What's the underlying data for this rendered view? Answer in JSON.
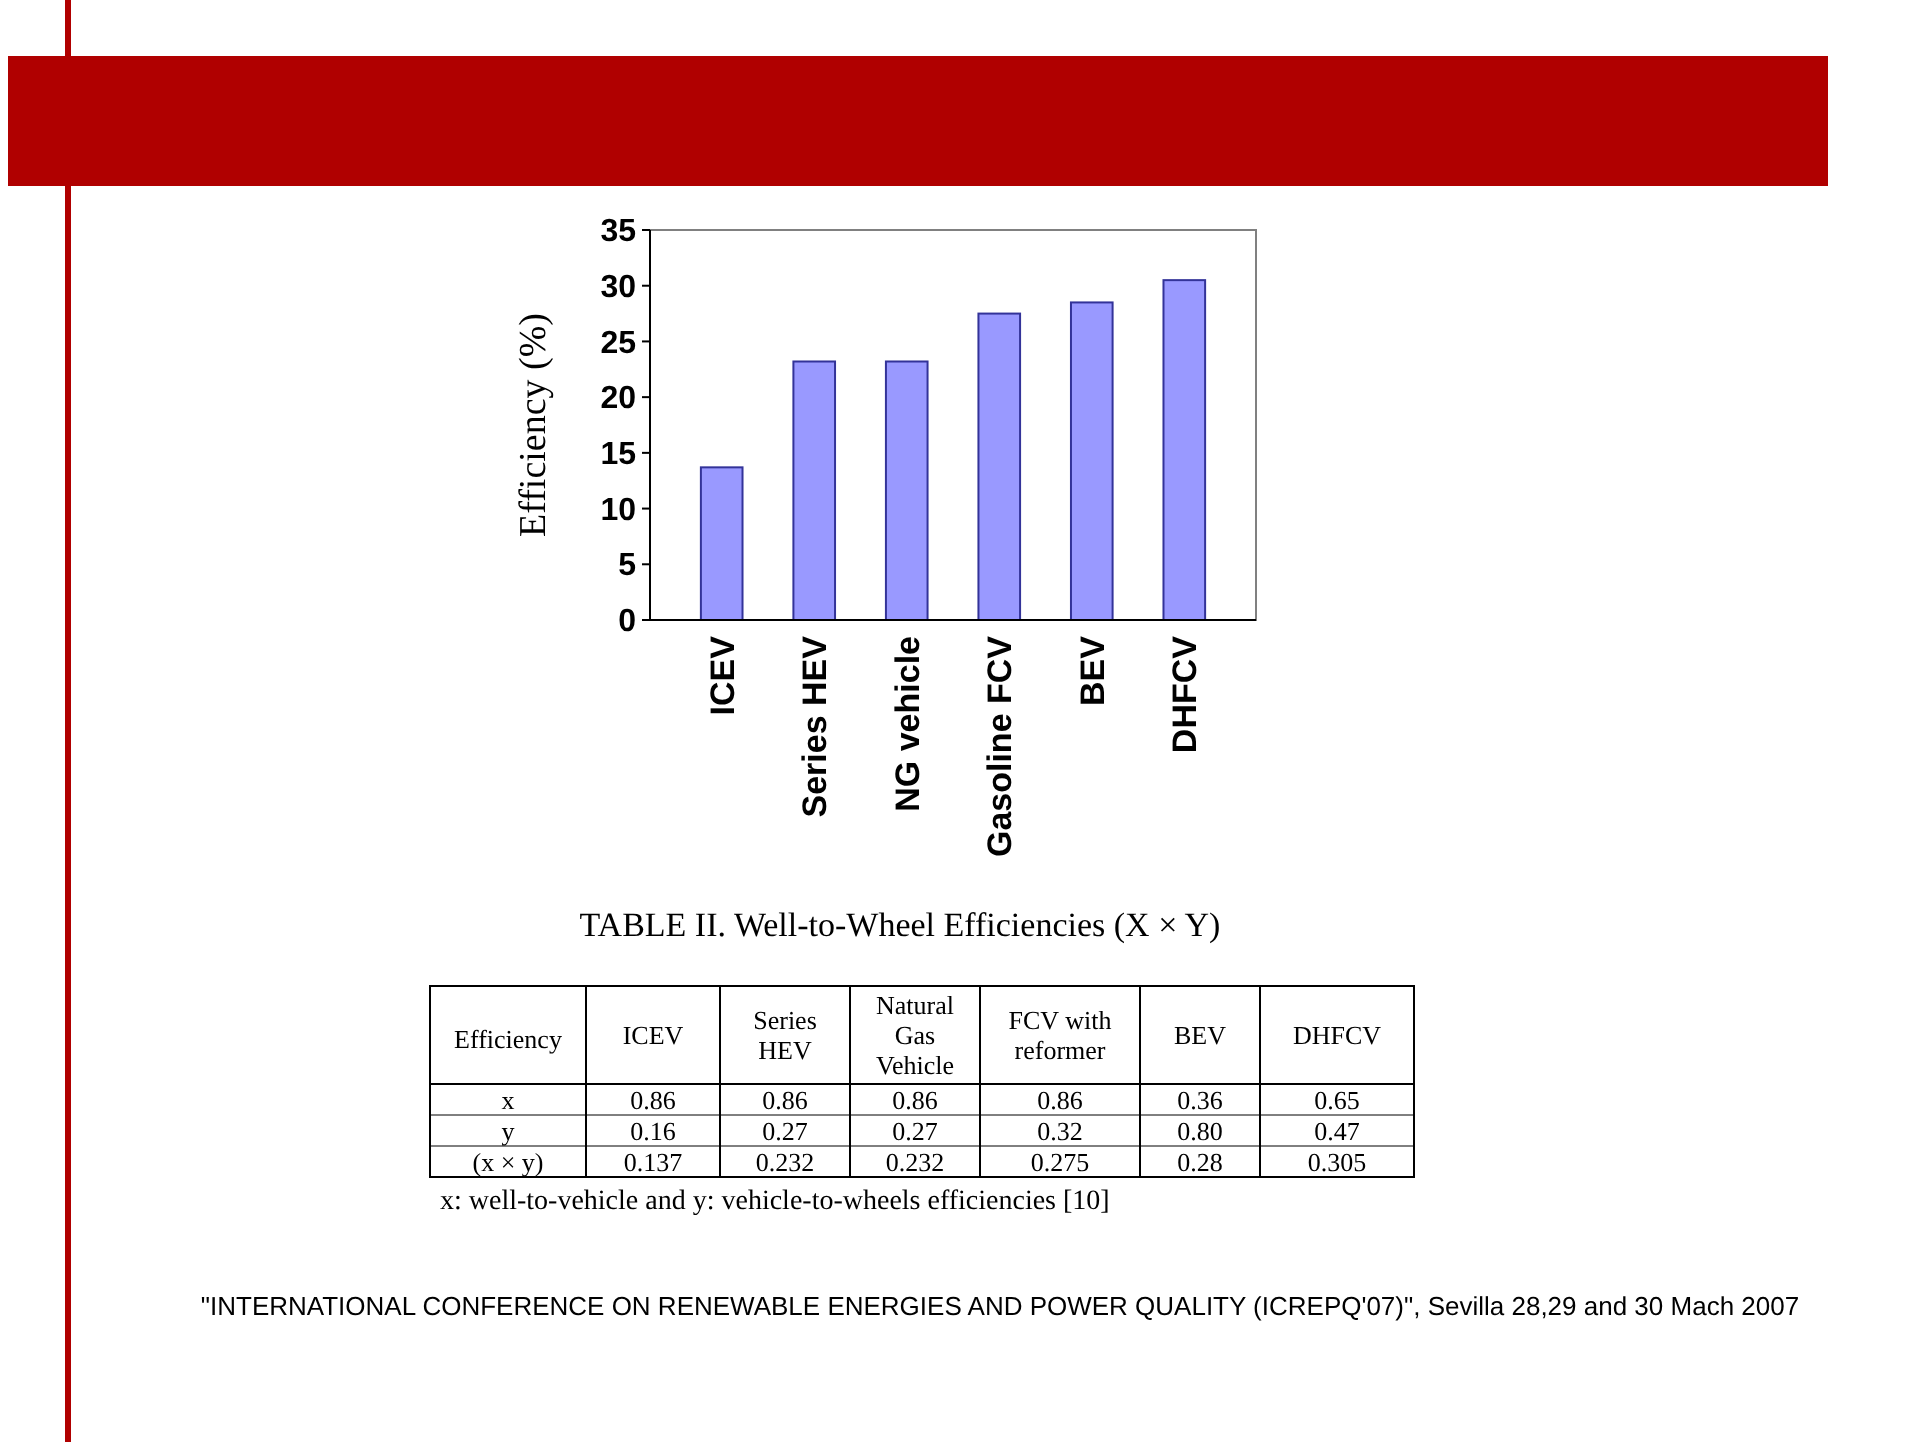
{
  "chart_data": [
    {
      "type": "bar",
      "ylabel": "Efficiency (%)",
      "categories": [
        "ICEV",
        "Series HEV",
        "NG vehicle",
        "Gasoline FCV",
        "BEV",
        "DHFCV"
      ],
      "values": [
        13.7,
        23.2,
        23.2,
        27.5,
        28.5,
        30.5
      ],
      "color": "#9999ff",
      "ylim": [
        0,
        35
      ],
      "yticks": [
        0,
        5,
        10,
        15,
        20,
        25,
        30,
        35
      ]
    },
    {
      "type": "other",
      "title": "TABLE II. Well-to-Wheel Efficiencies (X × Y)",
      "legend_title": "Efficiency",
      "data_labels": true,
      "categories": [
        "ICEV",
        "Series HEV",
        "Natural Gas Vehicle",
        "FCV with reformer",
        "BEV",
        "DHFCV"
      ],
      "series": [
        {
          "name": "x",
          "values": [
            0.86,
            0.86,
            0.86,
            0.86,
            0.36,
            0.65
          ]
        },
        {
          "name": "y",
          "values": [
            0.16,
            0.27,
            0.27,
            0.32,
            0.8,
            0.47
          ],
          "value_labels": [
            "0.16",
            "0.27",
            "0.27",
            "0.32",
            "0.80",
            "0.47"
          ]
        },
        {
          "name": "(x × y)",
          "values": [
            0.137,
            0.232,
            0.232,
            0.275,
            0.28,
            0.305
          ]
        }
      ],
      "annotations": [
        "x: well-to-vehicle and y: vehicle-to-wheels efficiencies [10]",
        "\"INTERNATIONAL CONFERENCE ON RENEWABLE ENERGIES AND POWER QUALITY (ICREPQ'07)\", Sevilla 28,29 and 30 Mach 2007"
      ]
    }
  ]
}
